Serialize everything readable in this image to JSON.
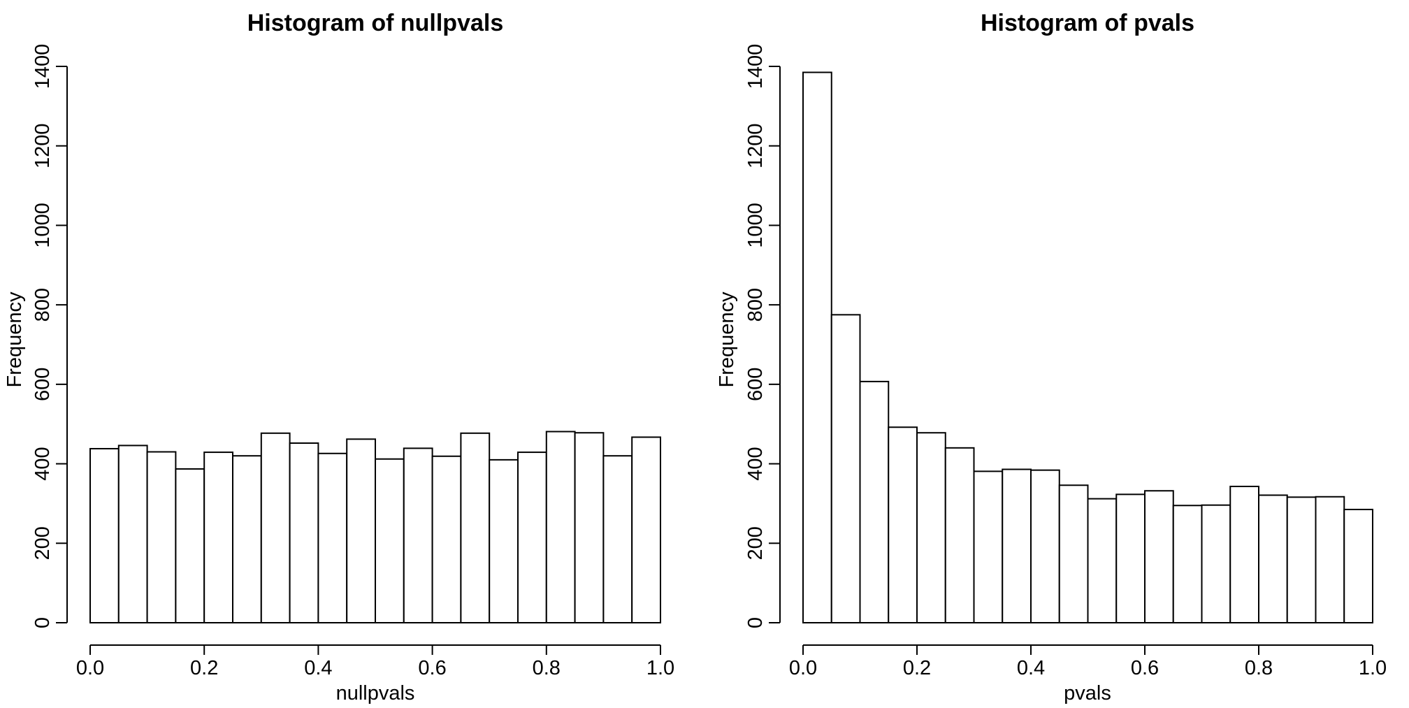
{
  "chart_data": [
    {
      "type": "bar",
      "title": "Histogram of nullpvals",
      "xlabel": "nullpvals",
      "ylabel": "Frequency",
      "xlim": [
        0,
        1
      ],
      "ylim": [
        0,
        1400
      ],
      "x_ticks": [
        "0.0",
        "0.2",
        "0.4",
        "0.6",
        "0.8",
        "1.0"
      ],
      "y_ticks": [
        "0",
        "200",
        "400",
        "600",
        "800",
        "1000",
        "1200",
        "1400"
      ],
      "bin_edges": [
        0,
        0.05,
        0.1,
        0.15,
        0.2,
        0.25,
        0.3,
        0.35,
        0.4,
        0.45,
        0.5,
        0.55,
        0.6,
        0.65,
        0.7,
        0.75,
        0.8,
        0.85,
        0.9,
        0.95,
        1.0
      ],
      "values": [
        438,
        446,
        430,
        387,
        429,
        420,
        477,
        452,
        426,
        462,
        412,
        439,
        419,
        477,
        410,
        429,
        481,
        478,
        420,
        467
      ],
      "grid": false,
      "colors": {
        "bar_fill": "#ffffff",
        "bar_stroke": "#000000"
      }
    },
    {
      "type": "bar",
      "title": "Histogram of pvals",
      "xlabel": "pvals",
      "ylabel": "Frequency",
      "xlim": [
        0,
        1
      ],
      "ylim": [
        0,
        1400
      ],
      "x_ticks": [
        "0.0",
        "0.2",
        "0.4",
        "0.6",
        "0.8",
        "1.0"
      ],
      "y_ticks": [
        "0",
        "200",
        "400",
        "600",
        "800",
        "1000",
        "1200",
        "1400"
      ],
      "bin_edges": [
        0,
        0.05,
        0.1,
        0.15,
        0.2,
        0.25,
        0.3,
        0.35,
        0.4,
        0.45,
        0.5,
        0.55,
        0.6,
        0.65,
        0.7,
        0.75,
        0.8,
        0.85,
        0.9,
        0.95,
        1.0
      ],
      "values": [
        1385,
        775,
        607,
        492,
        478,
        440,
        381,
        386,
        384,
        346,
        312,
        323,
        332,
        295,
        296,
        343,
        321,
        316,
        317,
        285
      ],
      "grid": false,
      "colors": {
        "bar_fill": "#ffffff",
        "bar_stroke": "#000000"
      }
    }
  ]
}
